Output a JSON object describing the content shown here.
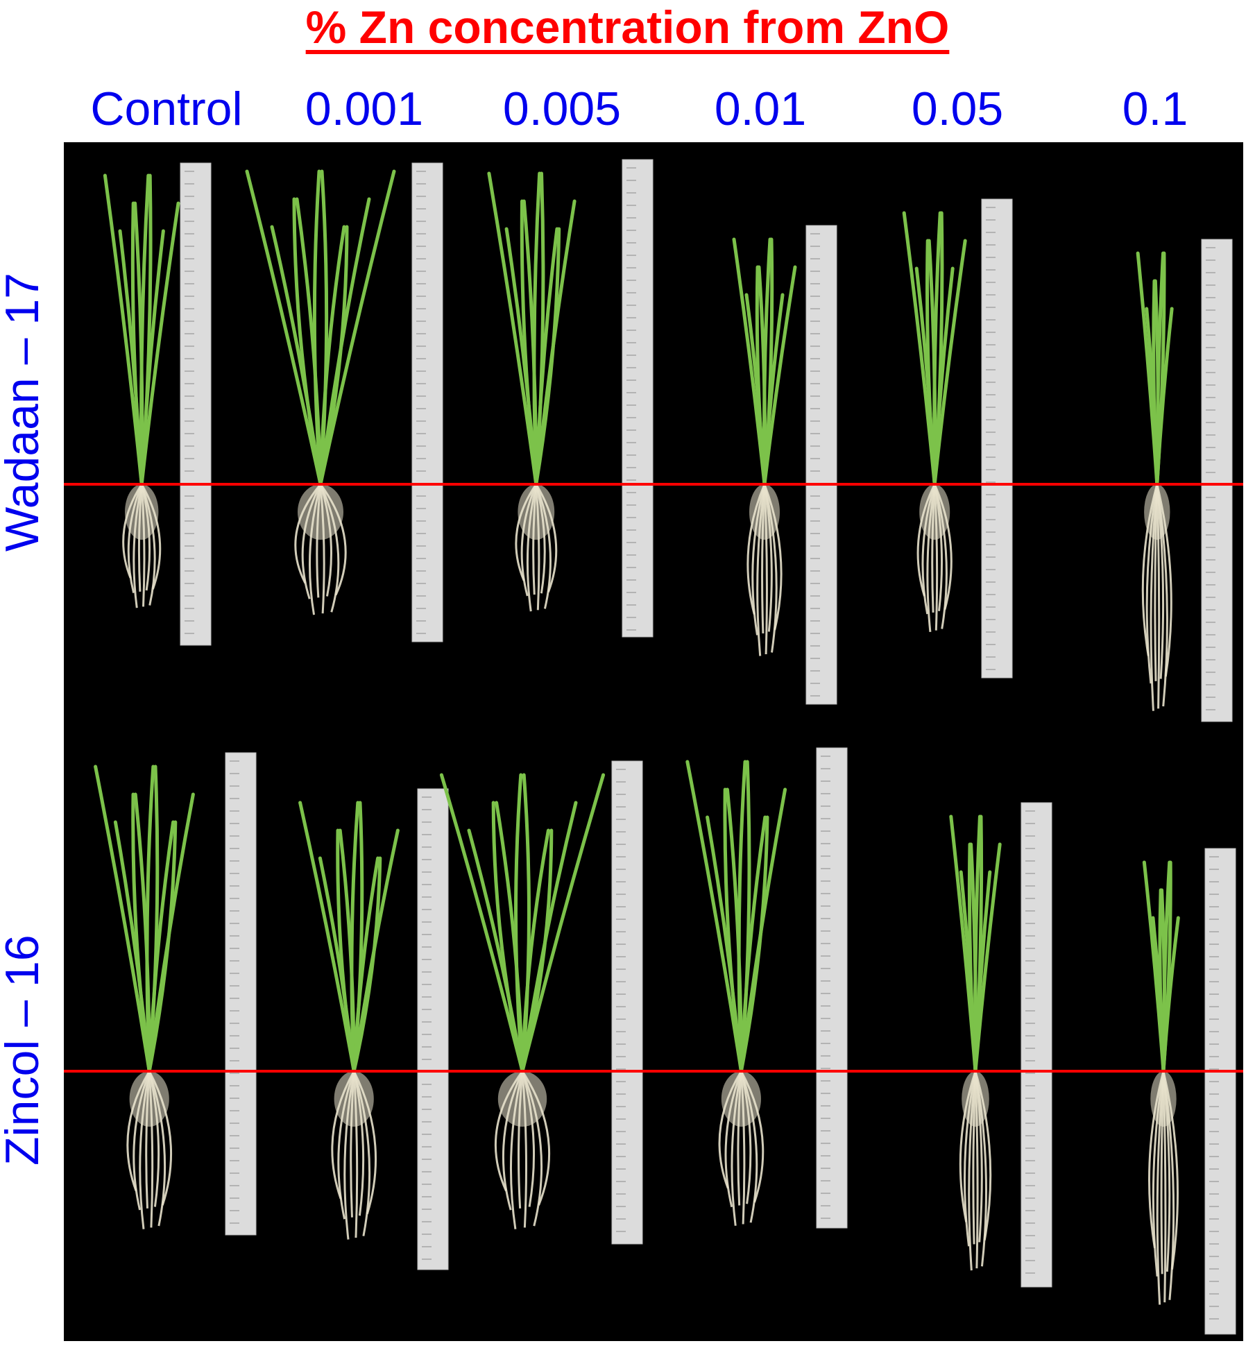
{
  "figure": {
    "title": "% Zn concentration from ZnO",
    "columns": [
      "Control",
      "0.001",
      "0.005",
      "0.01",
      "0.05",
      "0.1"
    ],
    "rows": [
      "Wadaan – 17",
      "Zincol – 16"
    ]
  },
  "colors": {
    "title": "#ff0000",
    "labels": "#0000ee",
    "background": "#000000",
    "reference_line": "#ff0000",
    "leaf": "#7cc24a",
    "root": "#e8e2cc",
    "ruler": "#dcdcdc"
  }
}
